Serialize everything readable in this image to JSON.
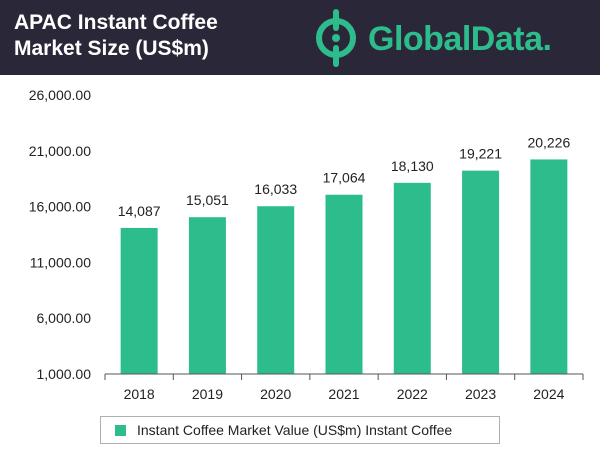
{
  "header": {
    "title_line1": "APAC Instant Coffee",
    "title_line2": "Market Size (US$m)",
    "brand": "GlobalData."
  },
  "colors": {
    "header_bg": "#2a2838",
    "bar": "#2dbd8c",
    "brand": "#2dbd8c",
    "axis": "#222222",
    "grid": "#d9d9d9"
  },
  "icons": {
    "logo_mark": "globaldata-logo-icon"
  },
  "chart_data": {
    "type": "bar",
    "categories": [
      "2018",
      "2019",
      "2020",
      "2021",
      "2022",
      "2023",
      "2024"
    ],
    "series": [
      {
        "name": "Instant Coffee Market Value (US$m) Instant Coffee",
        "values": [
          14087,
          15051,
          16033,
          17064,
          18130,
          19221,
          20226
        ],
        "labels": [
          "14,087",
          "15,051",
          "16,033",
          "17,064",
          "18,130",
          "19,221",
          "20,226"
        ]
      }
    ],
    "title": "APAC Instant Coffee Market Size (US$m)",
    "xlabel": "",
    "ylabel": "",
    "ylim": [
      1000,
      26000
    ],
    "yticks": [
      1000,
      6000,
      11000,
      16000,
      21000,
      26000
    ],
    "ytick_labels": [
      "1,000.00",
      "6,000.00",
      "11,000.00",
      "16,000.00",
      "21,000.00",
      "26,000.00"
    ],
    "grid": false,
    "legend_position": "bottom"
  }
}
